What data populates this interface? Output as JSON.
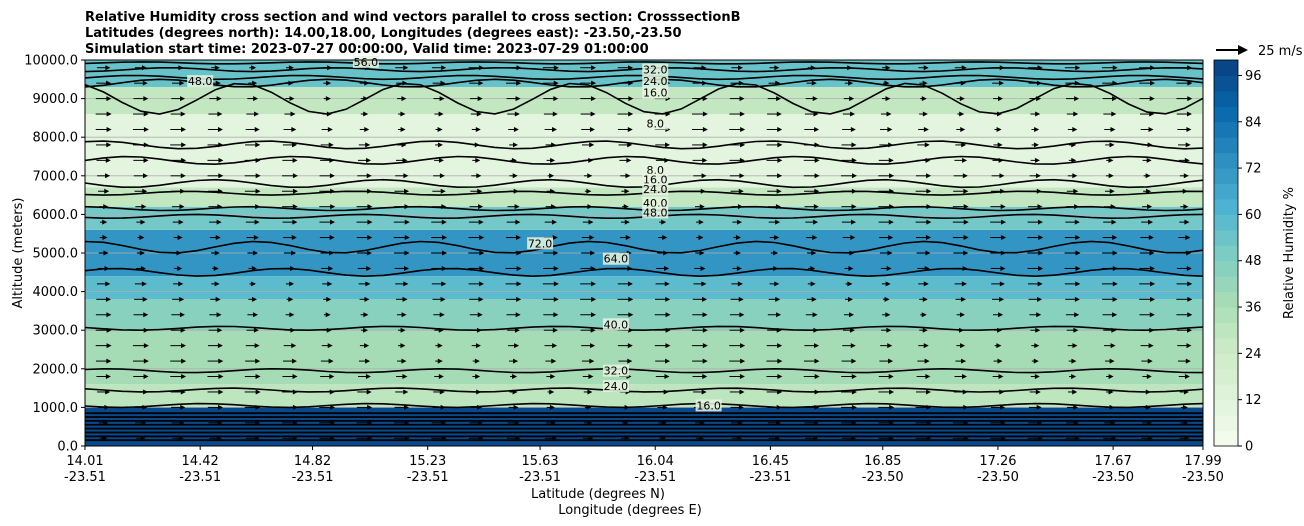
{
  "chart_data": {
    "type": "contour",
    "title_lines": [
      "Relative Humidity cross section and wind vectors parallel to cross section: CrosssectionB",
      "Latitudes (degrees north): 14.00,18.00, Longitudes (degrees east): -23.50,-23.50",
      "Simulation start time: 2023-07-27 00:00:00, Valid time: 2023-07-29 01:00:00"
    ],
    "ylabel": "Altitude (meters)",
    "xlabel_lines": [
      "Latitude (degrees N)",
      "Longitude (degrees E)"
    ],
    "ylim": [
      0,
      10000
    ],
    "y_ticks": [
      "0.0",
      "1000.0",
      "2000.0",
      "3000.0",
      "4000.0",
      "5000.0",
      "6000.0",
      "7000.0",
      "8000.0",
      "9000.0",
      "10000.0"
    ],
    "x_range": [
      14.01,
      17.99
    ],
    "x_ticks": [
      {
        "lat": "14.01",
        "lon": "-23.51"
      },
      {
        "lat": "14.42",
        "lon": "-23.51"
      },
      {
        "lat": "14.82",
        "lon": "-23.51"
      },
      {
        "lat": "15.23",
        "lon": "-23.51"
      },
      {
        "lat": "15.63",
        "lon": "-23.51"
      },
      {
        "lat": "16.04",
        "lon": "-23.51"
      },
      {
        "lat": "16.45",
        "lon": "-23.51"
      },
      {
        "lat": "16.85",
        "lon": "-23.50"
      },
      {
        "lat": "17.26",
        "lon": "-23.50"
      },
      {
        "lat": "17.67",
        "lon": "-23.50"
      },
      {
        "lat": "17.99",
        "lon": "-23.50"
      }
    ],
    "colorbar": {
      "label": "Relative Humidity %",
      "ticks": [
        "0",
        "12",
        "24",
        "36",
        "48",
        "60",
        "72",
        "84",
        "96"
      ],
      "range": [
        0,
        100
      ],
      "levels": 25,
      "low_color": "#f7fcf0",
      "high_color": "#084081"
    },
    "quiver_key": "25 m/s",
    "humidity_layers": [
      {
        "alt": [
          0,
          1000
        ],
        "rh": 97
      },
      {
        "alt": [
          1000,
          1600
        ],
        "rh": 30
      },
      {
        "alt": [
          1600,
          3000
        ],
        "rh": 38
      },
      {
        "alt": [
          3000,
          3800
        ],
        "rh": 46
      },
      {
        "alt": [
          3800,
          4400
        ],
        "rh": 58
      },
      {
        "alt": [
          4400,
          5600
        ],
        "rh": 72
      },
      {
        "alt": [
          5600,
          6200
        ],
        "rh": 52
      },
      {
        "alt": [
          6200,
          6700
        ],
        "rh": 28
      },
      {
        "alt": [
          6700,
          8600
        ],
        "rh": 10
      },
      {
        "alt": [
          8600,
          9300
        ],
        "rh": 28
      },
      {
        "alt": [
          9300,
          10000
        ],
        "rh": 55
      }
    ],
    "contours": [
      {
        "level": "8.0",
        "alt_start": 7300,
        "alt_end": 7500,
        "label_lat": 16.04,
        "label_alt": 7100
      },
      {
        "level": "8.0",
        "alt_start": 7700,
        "alt_end": 7900,
        "label_lat": 16.04,
        "label_alt": 8300
      },
      {
        "level": "16.0",
        "alt_start": 8600,
        "alt_end": 9400,
        "label_lat": 16.04,
        "label_alt": 9100
      },
      {
        "level": "16.0",
        "alt_start": 6700,
        "alt_end": 6900,
        "label_lat": 16.04,
        "label_alt": 6850
      },
      {
        "level": "24.0",
        "alt_start": 6500,
        "alt_end": 6600,
        "label_lat": 16.04,
        "label_alt": 6600
      },
      {
        "level": "24.0",
        "alt_start": 9300,
        "alt_end": 9500,
        "label_lat": 16.04,
        "label_alt": 9400
      },
      {
        "level": "32.0",
        "alt_start": 9500,
        "alt_end": 9600,
        "label_lat": 16.04,
        "label_alt": 9700
      },
      {
        "level": "32.0",
        "alt_start": 1900,
        "alt_end": 2000,
        "label_lat": 15.9,
        "label_alt": 1900
      },
      {
        "level": "40.0",
        "alt_start": 6100,
        "alt_end": 6200,
        "label_lat": 16.04,
        "label_alt": 6250
      },
      {
        "level": "40.0",
        "alt_start": 3000,
        "alt_end": 3100,
        "label_lat": 15.9,
        "label_alt": 3100
      },
      {
        "level": "48.0",
        "alt_start": 5900,
        "alt_end": 6000,
        "label_lat": 16.04,
        "label_alt": 6000
      },
      {
        "level": "48.0",
        "alt_start": 9700,
        "alt_end": 9800,
        "label_lat": 14.42,
        "label_alt": 9400
      },
      {
        "level": "56.0",
        "alt_start": 9900,
        "alt_end": 9950,
        "label_lat": 15.01,
        "label_alt": 9900
      },
      {
        "level": "64.0",
        "alt_start": 4400,
        "alt_end": 4600,
        "label_lat": 15.9,
        "label_alt": 4800
      },
      {
        "level": "72.0",
        "alt_start": 5000,
        "alt_end": 5300,
        "label_lat": 15.63,
        "label_alt": 5200
      },
      {
        "level": "24.0",
        "alt_start": 1400,
        "alt_end": 1500,
        "label_lat": 15.9,
        "label_alt": 1500
      },
      {
        "level": "16.0",
        "alt_start": 1000,
        "alt_end": 1100,
        "label_lat": 16.23,
        "label_alt": 1000
      }
    ],
    "wind": {
      "u_typical": 10,
      "v_typical": 0
    }
  }
}
